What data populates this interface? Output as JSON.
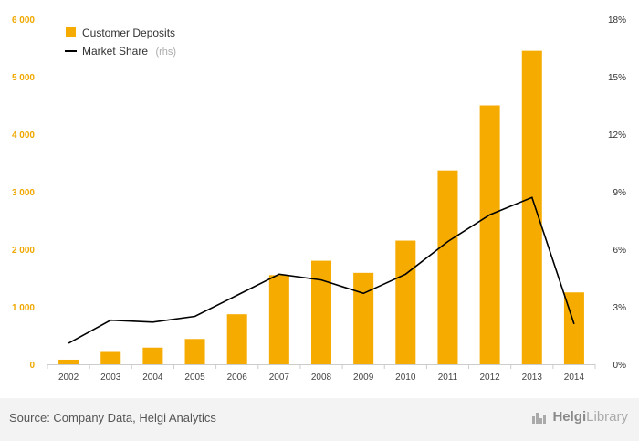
{
  "chart_data": {
    "type": "bar",
    "categories": [
      "2002",
      "2003",
      "2004",
      "2005",
      "2006",
      "2007",
      "2008",
      "2009",
      "2010",
      "2011",
      "2012",
      "2013",
      "2014"
    ],
    "series": [
      {
        "name": "Customer Deposits",
        "type": "bar",
        "axis": "left",
        "color": "#f5ab00",
        "values": [
          80,
          230,
          290,
          440,
          870,
          1550,
          1800,
          1590,
          2150,
          3370,
          4500,
          5450,
          1250
        ]
      },
      {
        "name": "Market Share",
        "type": "line",
        "axis": "right",
        "color": "#000000",
        "values": [
          1.1,
          2.3,
          2.2,
          2.5,
          3.6,
          4.7,
          4.4,
          3.7,
          4.7,
          6.4,
          7.8,
          8.7,
          2.1
        ]
      }
    ],
    "yticks_left": [
      "0",
      "1 000",
      "2 000",
      "3 000",
      "4 000",
      "5 000",
      "6 000"
    ],
    "ylim_left": [
      0,
      6000
    ],
    "yticks_right": [
      "0%",
      "3%",
      "6%",
      "9%",
      "12%",
      "15%",
      "18%"
    ],
    "ylim_right": [
      0,
      18
    ],
    "legend": [
      {
        "label": "Customer Deposits",
        "note": ""
      },
      {
        "label": "Market Share",
        "note": "(rhs)"
      }
    ],
    "legend_position": "top-left",
    "grid": false
  },
  "footer": {
    "source": "Source: Company Data, Helgi Analytics",
    "logo_bold": "Helgi",
    "logo_rest": "Library"
  }
}
